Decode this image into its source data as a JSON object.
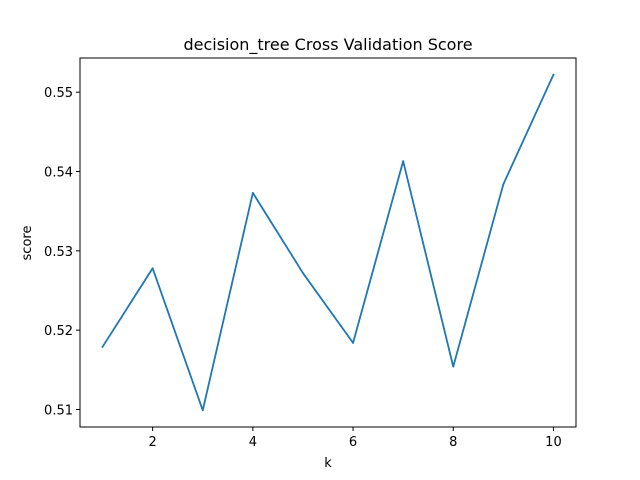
{
  "chart_data": {
    "type": "line",
    "title": "decision_tree Cross Validation Score",
    "xlabel": "k",
    "ylabel": "score",
    "x": [
      1,
      2,
      3,
      4,
      5,
      6,
      7,
      8,
      9,
      10
    ],
    "series": [
      {
        "values": [
          0.5179,
          0.5278,
          0.5099,
          0.5373,
          0.5272,
          0.5184,
          0.5413,
          0.5154,
          0.5384,
          0.5522
        ]
      }
    ],
    "xticks": [
      2,
      4,
      6,
      8,
      10
    ],
    "xtick_labels": [
      "2",
      "4",
      "6",
      "8",
      "10"
    ],
    "yticks": [
      0.51,
      0.52,
      0.53,
      0.54,
      0.55
    ],
    "ytick_labels": [
      "0.51",
      "0.52",
      "0.53",
      "0.54",
      "0.55"
    ],
    "xlim": [
      0.55,
      10.45
    ],
    "ylim": [
      0.50779,
      0.55431
    ],
    "grid": false,
    "line_color": "#1f77b4"
  }
}
